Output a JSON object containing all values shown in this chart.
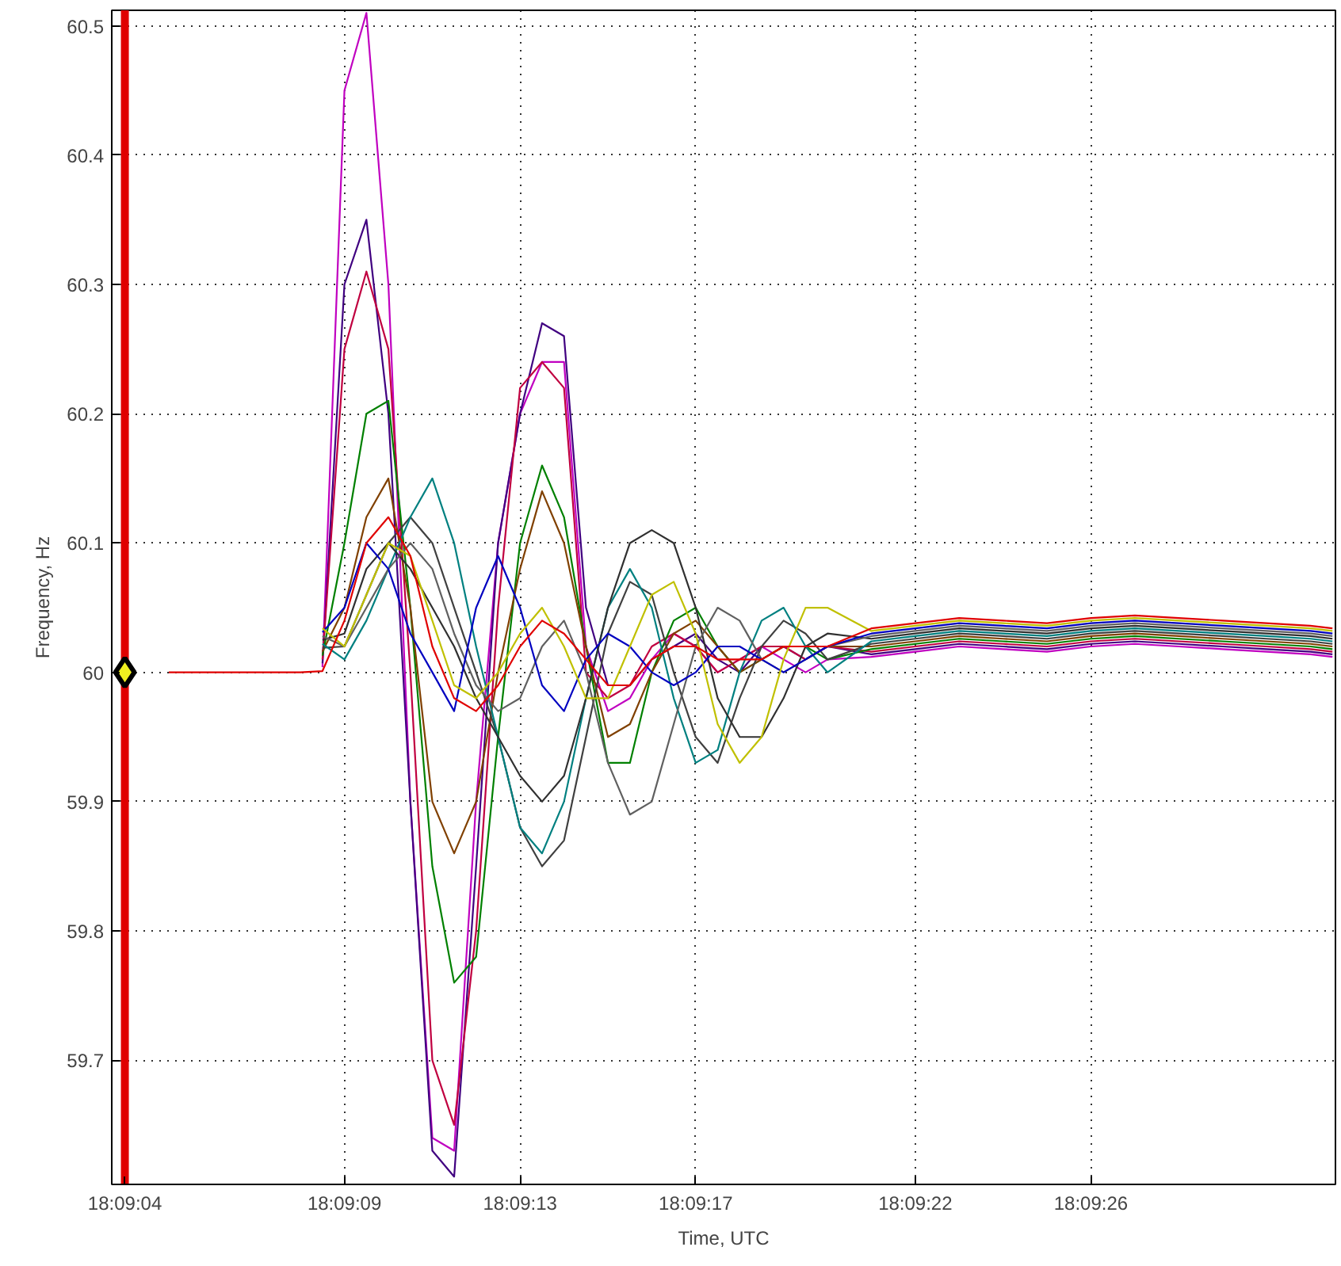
{
  "chart_data": {
    "type": "line",
    "xlabel": "Time, UTC",
    "ylabel": "Frequency, Hz",
    "xlim": [
      18.151028,
      18.158769
    ],
    "ylim": [
      59.604,
      60.512
    ],
    "xticks": [
      {
        "value": 18.151111,
        "label": "18:09:04"
      },
      {
        "value": 18.1525,
        "label": "18:09:09"
      },
      {
        "value": 18.153611,
        "label": "18:09:13"
      },
      {
        "value": 18.154722,
        "label": "18:09:17"
      },
      {
        "value": 18.156111,
        "label": "18:09:22"
      },
      {
        "value": 18.157222,
        "label": "18:09:26"
      }
    ],
    "yticks": [
      59.7,
      59.8,
      59.9,
      60,
      60.1,
      60.2,
      60.3,
      60.4,
      60.5
    ],
    "grid": true,
    "ref_lines": [
      {
        "axis": "x",
        "value": 18.151111,
        "color": "#e00000",
        "line_style": "solid"
      }
    ],
    "x": [
      18.151389,
      18.151667,
      18.152222,
      18.152361,
      18.1525,
      18.152639,
      18.152778,
      18.152917,
      18.153056,
      18.153194,
      18.153333,
      18.153472,
      18.153611,
      18.15375,
      18.153889,
      18.154028,
      18.154167,
      18.154306,
      18.154444,
      18.154583,
      18.154722,
      18.154861,
      18.155,
      18.155139,
      18.155278,
      18.155417,
      18.155556,
      18.155833,
      18.156111,
      18.156389,
      18.156667,
      18.156944,
      18.157222,
      18.1575,
      18.157778,
      18.158056,
      18.158333,
      18.158611,
      18.15875
    ],
    "series": [
      {
        "color": "#c000c0",
        "values": [
          null,
          null,
          null,
          60.004,
          60.45,
          60.51,
          60.3,
          59.9,
          59.64,
          59.63,
          59.9,
          60.1,
          60.2,
          60.24,
          60.24,
          60.02,
          59.97,
          59.98,
          60.01,
          60.03,
          60.02,
          60.0,
          60.01,
          60.02,
          60.01,
          60.0,
          60.01,
          60.012,
          60.016,
          60.02,
          60.018,
          60.016,
          60.02,
          60.022,
          60.02,
          60.018,
          60.016,
          60.014,
          60.012
        ]
      },
      {
        "color": "#400080",
        "values": [
          null,
          null,
          null,
          60.007,
          60.3,
          60.35,
          60.2,
          59.9,
          59.63,
          59.61,
          59.85,
          60.1,
          60.2,
          60.27,
          60.26,
          60.05,
          59.99,
          59.99,
          60.01,
          60.02,
          60.03,
          60.01,
          60.0,
          60.02,
          60.02,
          60.01,
          60.02,
          60.014,
          60.018,
          60.022,
          60.02,
          60.018,
          60.022,
          60.024,
          60.022,
          60.02,
          60.018,
          60.016,
          60.014
        ]
      },
      {
        "color": "#c00040",
        "values": [
          null,
          null,
          null,
          60.01,
          60.25,
          60.31,
          60.25,
          60.0,
          59.7,
          59.65,
          59.8,
          60.05,
          60.22,
          60.24,
          60.22,
          60.0,
          59.98,
          59.99,
          60.02,
          60.03,
          60.02,
          60.0,
          60.01,
          60.02,
          60.02,
          60.01,
          60.02,
          60.016,
          60.02,
          60.024,
          60.022,
          60.02,
          60.024,
          60.026,
          60.024,
          60.022,
          60.02,
          60.018,
          60.016
        ]
      },
      {
        "color": "#008000",
        "values": [
          null,
          null,
          null,
          60.013,
          60.1,
          60.2,
          60.21,
          60.05,
          59.85,
          59.76,
          59.78,
          59.95,
          60.1,
          60.16,
          60.12,
          60.02,
          59.93,
          59.93,
          60.0,
          60.04,
          60.05,
          60.02,
          60.0,
          60.01,
          60.02,
          60.02,
          60.01,
          60.018,
          60.022,
          60.026,
          60.024,
          60.022,
          60.026,
          60.028,
          60.026,
          60.024,
          60.022,
          60.02,
          60.018
        ]
      },
      {
        "color": "#804000",
        "values": [
          null,
          null,
          null,
          60.016,
          60.05,
          60.12,
          60.15,
          60.05,
          59.9,
          59.86,
          59.9,
          60.0,
          60.08,
          60.14,
          60.1,
          60.02,
          59.95,
          59.96,
          60.0,
          60.03,
          60.04,
          60.02,
          60.0,
          60.01,
          60.02,
          60.02,
          60.02,
          60.02,
          60.024,
          60.028,
          60.026,
          60.024,
          60.028,
          60.03,
          60.028,
          60.026,
          60.024,
          60.022,
          60.02
        ]
      },
      {
        "color": "#404040",
        "values": [
          null,
          null,
          null,
          60.019,
          60.02,
          60.06,
          60.1,
          60.12,
          60.1,
          60.05,
          60.0,
          59.95,
          59.88,
          59.85,
          59.87,
          59.95,
          60.03,
          60.07,
          60.06,
          60.0,
          59.95,
          59.93,
          59.98,
          60.02,
          60.04,
          60.03,
          60.01,
          60.022,
          60.026,
          60.03,
          60.028,
          60.026,
          60.03,
          60.032,
          60.03,
          60.028,
          60.026,
          60.024,
          60.022
        ]
      },
      {
        "color": "#008080",
        "values": [
          null,
          null,
          null,
          60.022,
          60.01,
          60.04,
          60.08,
          60.12,
          60.15,
          60.1,
          60.02,
          59.95,
          59.88,
          59.86,
          59.9,
          59.98,
          60.05,
          60.08,
          60.05,
          59.98,
          59.93,
          59.94,
          60.0,
          60.04,
          60.05,
          60.02,
          60.0,
          60.024,
          60.028,
          60.032,
          60.03,
          60.028,
          60.032,
          60.034,
          60.032,
          60.03,
          60.028,
          60.026,
          60.024
        ]
      },
      {
        "color": "#303030",
        "values": [
          null,
          null,
          null,
          60.025,
          60.03,
          60.08,
          60.1,
          60.08,
          60.05,
          60.02,
          59.98,
          59.95,
          59.92,
          59.9,
          59.92,
          59.98,
          60.05,
          60.1,
          60.11,
          60.1,
          60.05,
          59.98,
          59.95,
          59.95,
          59.98,
          60.02,
          60.03,
          60.026,
          60.03,
          60.034,
          60.032,
          60.03,
          60.034,
          60.036,
          60.034,
          60.032,
          60.03,
          60.028,
          60.026
        ]
      },
      {
        "color": "#606060",
        "values": [
          null,
          null,
          null,
          60.028,
          60.02,
          60.05,
          60.08,
          60.1,
          60.08,
          60.03,
          59.99,
          59.97,
          59.98,
          60.02,
          60.04,
          60.0,
          59.93,
          59.89,
          59.9,
          59.96,
          60.02,
          60.05,
          60.04,
          60.01,
          60.0,
          60.01,
          60.02,
          60.028,
          60.032,
          60.036,
          60.034,
          60.032,
          60.036,
          60.038,
          60.036,
          60.034,
          60.032,
          60.03,
          60.028
        ]
      },
      {
        "color": "#0000c0",
        "values": [
          null,
          null,
          null,
          60.031,
          60.05,
          60.1,
          60.08,
          60.03,
          60.0,
          59.97,
          60.05,
          60.09,
          60.05,
          59.99,
          59.97,
          60.01,
          60.03,
          60.02,
          60.0,
          59.99,
          60.0,
          60.02,
          60.02,
          60.01,
          60.0,
          60.01,
          60.02,
          60.03,
          60.034,
          60.038,
          60.036,
          60.034,
          60.038,
          60.04,
          60.038,
          60.036,
          60.034,
          60.032,
          60.03
        ]
      },
      {
        "color": "#c0c000",
        "values": [
          null,
          null,
          null,
          60.034,
          60.02,
          60.06,
          60.1,
          60.09,
          60.04,
          59.99,
          59.98,
          60.0,
          60.03,
          60.05,
          60.02,
          59.98,
          59.98,
          60.02,
          60.06,
          60.07,
          60.03,
          59.96,
          59.93,
          59.95,
          60.01,
          60.05,
          60.05,
          60.032,
          60.036,
          60.04,
          60.038,
          60.036,
          60.04,
          60.042,
          60.04,
          60.038,
          60.036,
          60.034,
          60.032
        ]
      },
      {
        "color": "#e00000",
        "values": [
          60,
          60,
          60,
          60.001,
          60.04,
          60.1,
          60.12,
          60.09,
          60.02,
          59.98,
          59.97,
          59.99,
          60.02,
          60.04,
          60.03,
          60.01,
          59.99,
          59.99,
          60.01,
          60.02,
          60.02,
          60.01,
          60.01,
          60.01,
          60.02,
          60.02,
          60.02,
          60.034,
          60.038,
          60.042,
          60.04,
          60.038,
          60.042,
          60.044,
          60.042,
          60.04,
          60.038,
          60.036,
          60.034
        ]
      },
      {
        "type": "scatter",
        "marker": "diamond",
        "color": "#f0f020",
        "x": [
          18.151111
        ],
        "values": [
          60
        ]
      }
    ]
  }
}
